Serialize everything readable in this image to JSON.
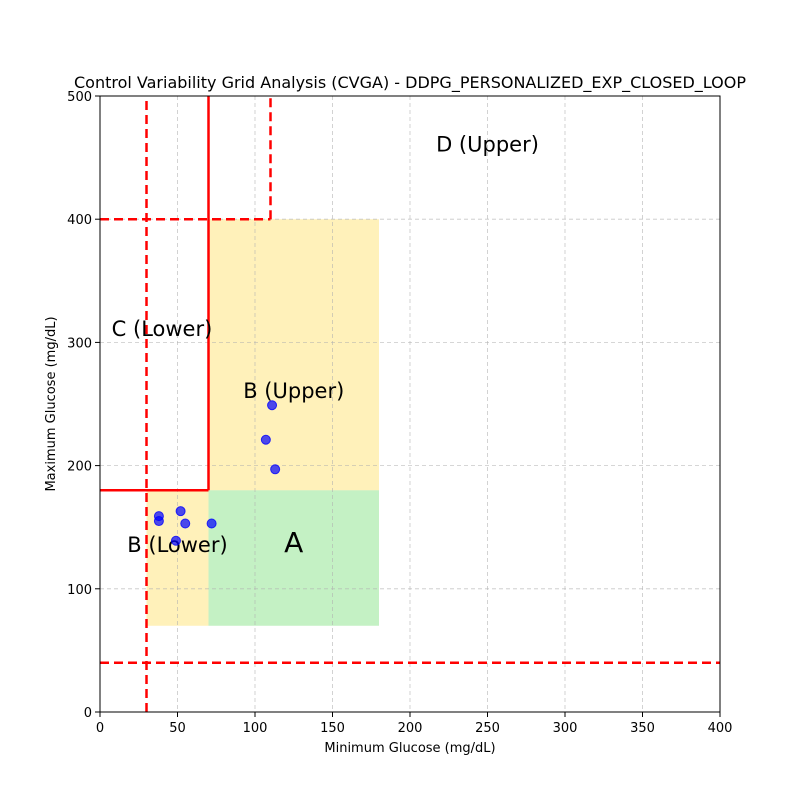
{
  "chart_data": {
    "type": "scatter",
    "title": "Control Variability Grid Analysis (CVGA) - DDPG_PERSONALIZED_EXP_CLOSED_LOOP",
    "xlabel": "Minimum Glucose (mg/dL)",
    "ylabel": "Maximum Glucose (mg/dL)",
    "xlim": [
      0,
      400
    ],
    "ylim": [
      0,
      500
    ],
    "xticks": [
      "0",
      "50",
      "100",
      "150",
      "200",
      "250",
      "300",
      "350",
      "400"
    ],
    "yticks": [
      "0",
      "100",
      "200",
      "300",
      "400",
      "500"
    ],
    "grid": true,
    "regions": [
      {
        "name": "B (Lower)",
        "x": [
          30,
          70
        ],
        "y": [
          70,
          180
        ],
        "color": "#ffe066"
      },
      {
        "name": "A",
        "x": [
          70,
          180
        ],
        "y": [
          70,
          180
        ],
        "color": "#7ddf7d"
      },
      {
        "name": "B (Upper)",
        "x": [
          70,
          180
        ],
        "y": [
          180,
          400
        ],
        "color": "#ffe066"
      }
    ],
    "boundary_lines": {
      "color": "#ff0000",
      "dashed": [
        {
          "x": [
            30,
            30
          ],
          "y": [
            0,
            500
          ]
        },
        {
          "x": [
            0,
            400
          ],
          "y": [
            40,
            40
          ]
        },
        {
          "x": [
            0,
            110
          ],
          "y": [
            400,
            400
          ]
        },
        {
          "x": [
            110,
            110
          ],
          "y": [
            400,
            500
          ]
        }
      ],
      "solid": [
        {
          "x": [
            70,
            70
          ],
          "y": [
            180,
            500
          ]
        },
        {
          "x": [
            0,
            70
          ],
          "y": [
            180,
            180
          ]
        }
      ]
    },
    "zone_labels": [
      {
        "text": "D (Upper)",
        "x": 250,
        "y": 455
      },
      {
        "text": "C (Lower)",
        "x": 40,
        "y": 305
      },
      {
        "text": "B (Upper)",
        "x": 125,
        "y": 255
      },
      {
        "text": "B (Lower)",
        "x": 50,
        "y": 130
      },
      {
        "text": "A",
        "x": 125,
        "y": 130
      }
    ],
    "series": [
      {
        "color": "#0000ff",
        "points": [
          {
            "x": 111,
            "y": 249
          },
          {
            "x": 107,
            "y": 221
          },
          {
            "x": 113,
            "y": 197
          },
          {
            "x": 52,
            "y": 163
          },
          {
            "x": 38,
            "y": 159
          },
          {
            "x": 38,
            "y": 155
          },
          {
            "x": 55,
            "y": 153
          },
          {
            "x": 72,
            "y": 153
          },
          {
            "x": 49,
            "y": 139
          }
        ]
      }
    ]
  }
}
